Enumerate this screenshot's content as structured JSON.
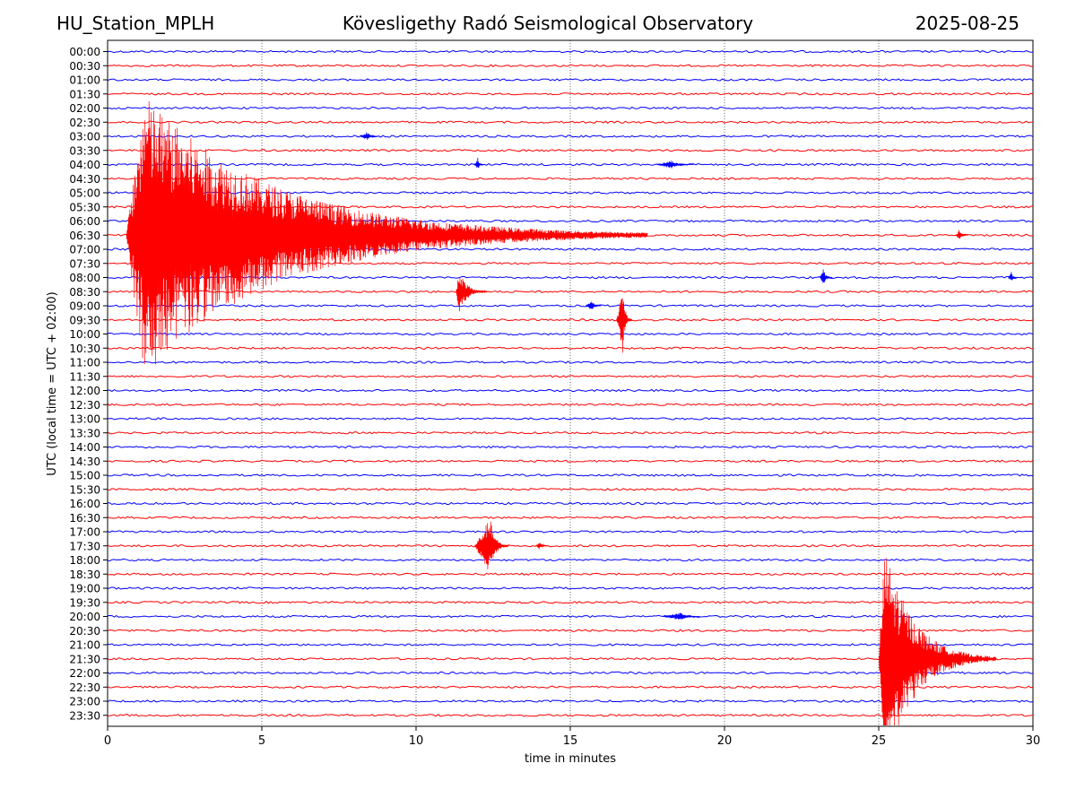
{
  "header": {
    "station": "HU_Station_MPLH",
    "observatory": "Kövesligethy Radó Seismological Observatory",
    "date": "2025-08-25"
  },
  "chart_data": {
    "type": "line",
    "title": "Kövesligethy Radó Seismological Observatory",
    "xlabel": "time in minutes",
    "ylabel": "UTC (local time = UTC + 02:00)",
    "xlim": [
      0,
      30
    ],
    "x_ticks": [
      0,
      5,
      10,
      15,
      20,
      25,
      30
    ],
    "grid": "vertical dotted lines at 5-minute ticks",
    "colors": [
      "#0000ff",
      "#ff0000"
    ],
    "trace_labels": [
      "00:00",
      "00:30",
      "01:00",
      "01:30",
      "02:00",
      "02:30",
      "03:00",
      "03:30",
      "04:00",
      "04:30",
      "05:00",
      "05:30",
      "06:00",
      "06:30",
      "07:00",
      "07:30",
      "08:00",
      "08:30",
      "09:00",
      "09:30",
      "10:00",
      "10:30",
      "11:00",
      "11:30",
      "12:00",
      "12:30",
      "13:00",
      "13:30",
      "14:00",
      "14:30",
      "15:00",
      "15:30",
      "16:00",
      "16:30",
      "17:00",
      "17:30",
      "18:00",
      "18:30",
      "19:00",
      "19:30",
      "20:00",
      "20:30",
      "21:00",
      "21:30",
      "22:00",
      "22:30",
      "23:00",
      "23:30"
    ],
    "events": [
      {
        "trace": "06:30",
        "start_min": 0.6,
        "peak_min": 1.2,
        "end_min": 17.5,
        "amplitude": 10,
        "description": "large event with long coda"
      },
      {
        "trace": "03:00",
        "start_min": 8.2,
        "peak_min": 8.4,
        "end_min": 8.8,
        "amplitude": 0.35
      },
      {
        "trace": "04:00",
        "start_min": 11.9,
        "peak_min": 12.0,
        "end_min": 12.2,
        "amplitude": 0.5
      },
      {
        "trace": "04:00",
        "start_min": 17.8,
        "peak_min": 18.3,
        "end_min": 19.0,
        "amplitude": 0.3
      },
      {
        "trace": "06:30",
        "start_min": 27.5,
        "peak_min": 27.6,
        "end_min": 27.9,
        "amplitude": 0.4
      },
      {
        "trace": "08:00",
        "start_min": 23.1,
        "peak_min": 23.2,
        "end_min": 23.5,
        "amplitude": 0.7
      },
      {
        "trace": "08:00",
        "start_min": 29.2,
        "peak_min": 29.3,
        "end_min": 29.5,
        "amplitude": 0.4
      },
      {
        "trace": "08:30",
        "start_min": 11.3,
        "peak_min": 11.4,
        "end_min": 12.3,
        "amplitude": 1.6
      },
      {
        "trace": "09:00",
        "start_min": 15.5,
        "peak_min": 15.7,
        "end_min": 16.0,
        "amplitude": 0.4
      },
      {
        "trace": "09:30",
        "start_min": 16.5,
        "peak_min": 16.7,
        "end_min": 17.0,
        "amplitude": 2.4
      },
      {
        "trace": "17:30",
        "start_min": 11.9,
        "peak_min": 12.4,
        "end_min": 13.0,
        "amplitude": 2.0
      },
      {
        "trace": "17:30",
        "start_min": 13.9,
        "peak_min": 14.0,
        "end_min": 14.3,
        "amplitude": 0.3
      },
      {
        "trace": "20:00",
        "start_min": 18.0,
        "peak_min": 18.6,
        "end_min": 19.2,
        "amplitude": 0.3
      },
      {
        "trace": "21:30",
        "start_min": 25.0,
        "peak_min": 25.2,
        "end_min": 28.8,
        "amplitude": 8,
        "description": "large event with long coda"
      }
    ]
  }
}
